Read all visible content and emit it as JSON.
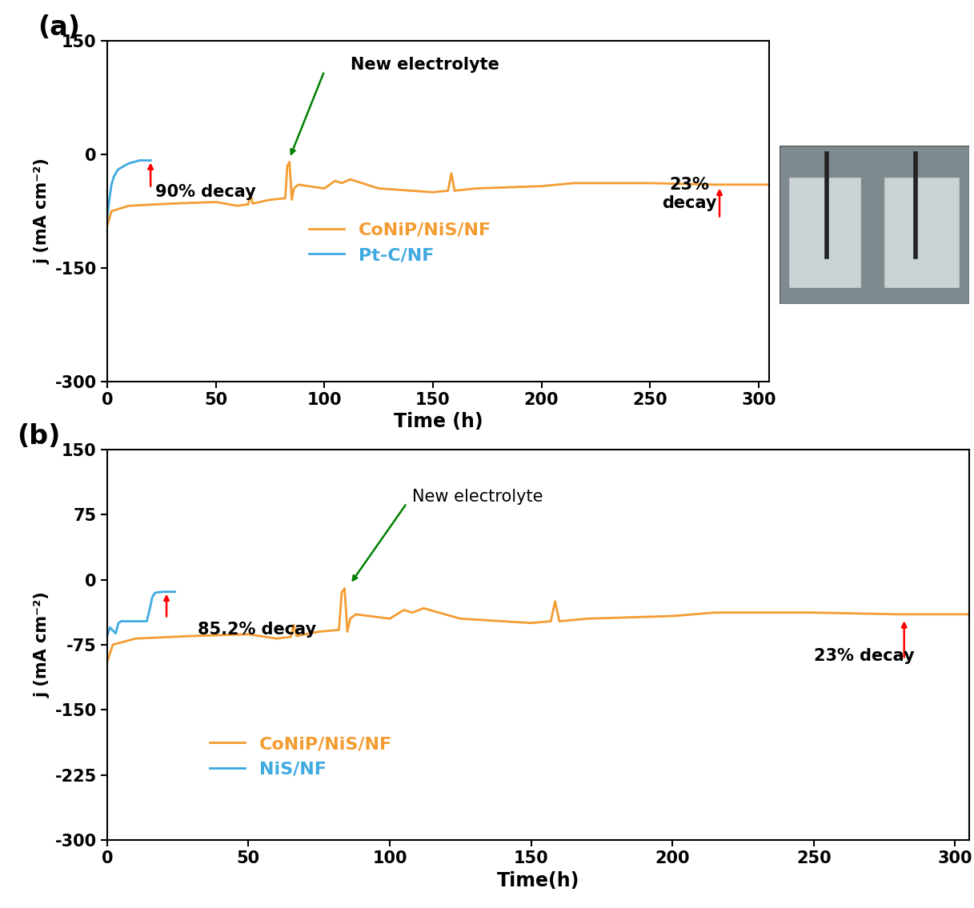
{
  "chart_data": [
    {
      "type": "line",
      "title": "(a)",
      "x_label": "Time (h)",
      "y_label": "j (mA cm⁻²)",
      "xlim": [
        0,
        305
      ],
      "xticks": [
        0,
        50,
        100,
        150,
        200,
        250,
        300
      ],
      "ylim": [
        -300,
        150
      ],
      "yticks": [
        -300,
        -150,
        0,
        150
      ],
      "legend": "lower left",
      "annotations": [
        "New electrolyte",
        "90% decay",
        "23%\ndecay"
      ],
      "series": [
        {
          "name": "CoNiP/NiS/NF",
          "color": "#f39c32",
          "x": [
            0,
            2,
            10,
            30,
            50,
            60,
            65,
            66,
            67,
            75,
            82,
            83,
            84,
            85,
            86,
            88,
            100,
            105,
            108,
            112,
            125,
            150,
            157,
            158.5,
            160,
            170,
            200,
            215,
            250,
            280,
            305
          ],
          "values": [
            -95,
            -75,
            -68,
            -65,
            -63,
            -68,
            -66,
            -52,
            -65,
            -60,
            -58,
            -15,
            -10,
            -60,
            -45,
            -40,
            -45,
            -35,
            -38,
            -33,
            -45,
            -50,
            -48,
            -25,
            -48,
            -45,
            -42,
            -38,
            -38,
            -40,
            -40
          ]
        },
        {
          "name": "Pt-C/NF",
          "color": "#3fa9e0",
          "x": [
            0,
            1,
            2,
            3,
            5,
            8,
            10,
            15,
            20
          ],
          "values": [
            -85,
            -60,
            -40,
            -30,
            -20,
            -15,
            -12,
            -8,
            -8
          ]
        }
      ]
    },
    {
      "type": "line",
      "title": "(b)",
      "x_label": "Time(h)",
      "y_label": "j (mA cm⁻²)",
      "xlim": [
        0,
        305
      ],
      "xticks": [
        0,
        50,
        100,
        150,
        200,
        250,
        300
      ],
      "ylim": [
        -300,
        150
      ],
      "yticks": [
        -300,
        -225,
        -150,
        -75,
        0,
        75,
        150
      ],
      "legend": "lower left",
      "annotations": [
        "New electrolyte",
        "85.2% decay",
        "23% decay"
      ],
      "series": [
        {
          "name": "CoNiP/NiS/NF",
          "color": "#f39c32",
          "x": [
            0,
            2,
            10,
            30,
            50,
            60,
            65,
            66,
            67,
            75,
            82,
            83,
            84,
            85,
            86,
            88,
            100,
            105,
            108,
            112,
            125,
            150,
            157,
            158.5,
            160,
            170,
            200,
            215,
            250,
            280,
            305
          ],
          "values": [
            -95,
            -75,
            -68,
            -65,
            -63,
            -68,
            -66,
            -52,
            -65,
            -60,
            -58,
            -15,
            -10,
            -60,
            -45,
            -40,
            -45,
            -35,
            -38,
            -33,
            -45,
            -50,
            -48,
            -25,
            -48,
            -45,
            -42,
            -38,
            -38,
            -40,
            -40
          ]
        },
        {
          "name": "NiS/NF",
          "color": "#3fa9e0",
          "x": [
            0,
            1,
            3,
            4,
            5,
            10,
            14,
            15,
            16,
            17,
            20,
            24
          ],
          "values": [
            -65,
            -55,
            -62,
            -50,
            -48,
            -48,
            -48,
            -35,
            -20,
            -15,
            -14,
            -14
          ]
        }
      ]
    }
  ]
}
